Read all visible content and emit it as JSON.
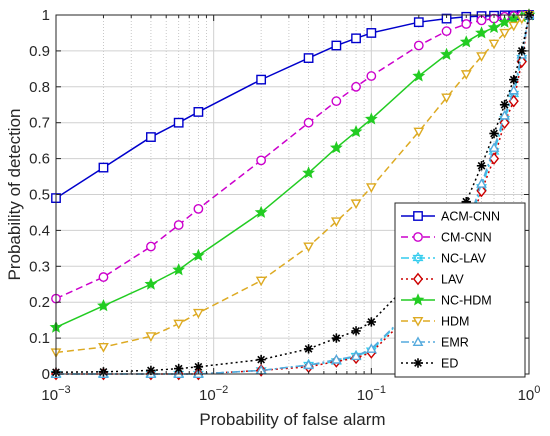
{
  "chart_data": {
    "type": "line",
    "xscale": "log",
    "xlabel": "Probability of false alarm",
    "ylabel": "Probability of detection",
    "xlim": [
      0.001,
      1
    ],
    "ylim": [
      0,
      1
    ],
    "grid": "on",
    "legend_position": "bottom-right",
    "x_ticks": [
      {
        "value": 0.001,
        "base": "10",
        "exp": "−3"
      },
      {
        "value": 0.01,
        "base": "10",
        "exp": "−2"
      },
      {
        "value": 0.1,
        "base": "10",
        "exp": "−1"
      },
      {
        "value": 1,
        "base": "10",
        "exp": "0"
      }
    ],
    "y_ticks": [
      "0",
      "0.1",
      "0.2",
      "0.3",
      "0.4",
      "0.5",
      "0.6",
      "0.7",
      "0.8",
      "0.9",
      "1"
    ],
    "series": [
      {
        "name": "ACM-CNN",
        "color": "#0000cc",
        "dash": "solid",
        "marker": "square",
        "x": [
          0.001,
          0.002,
          0.004,
          0.006,
          0.008,
          0.02,
          0.04,
          0.06,
          0.08,
          0.1,
          0.2,
          0.3,
          0.4,
          0.5,
          0.6,
          0.7,
          0.8,
          0.9,
          1
        ],
        "y": [
          0.49,
          0.575,
          0.66,
          0.7,
          0.73,
          0.82,
          0.88,
          0.915,
          0.935,
          0.95,
          0.98,
          0.99,
          0.995,
          0.997,
          0.998,
          0.999,
          0.999,
          1.0,
          1.0
        ]
      },
      {
        "name": "CM-CNN",
        "color": "#cc00cc",
        "dash": "dashed",
        "marker": "circle",
        "x": [
          0.001,
          0.002,
          0.004,
          0.006,
          0.008,
          0.02,
          0.04,
          0.06,
          0.08,
          0.1,
          0.2,
          0.3,
          0.4,
          0.5,
          0.6,
          0.7,
          0.8,
          0.9,
          1
        ],
        "y": [
          0.21,
          0.27,
          0.355,
          0.415,
          0.46,
          0.595,
          0.7,
          0.76,
          0.8,
          0.83,
          0.915,
          0.955,
          0.975,
          0.985,
          0.99,
          0.995,
          0.997,
          0.999,
          1.0
        ]
      },
      {
        "name": "NC-LAV",
        "color": "#33ccee",
        "dash": "dashdot",
        "marker": "hexagram",
        "x": [
          0.001,
          0.002,
          0.004,
          0.006,
          0.008,
          0.02,
          0.04,
          0.06,
          0.08,
          0.1,
          0.2,
          0.3,
          0.4,
          0.5,
          0.6,
          0.7,
          0.8,
          0.9,
          1
        ],
        "y": [
          0.0,
          0.0,
          0.0,
          0.0,
          0.0,
          0.01,
          0.025,
          0.035,
          0.05,
          0.065,
          0.2,
          0.3,
          0.4,
          0.52,
          0.62,
          0.71,
          0.78,
          0.88,
          1.0
        ]
      },
      {
        "name": "LAV",
        "color": "#cc0000",
        "dash": "dotted",
        "marker": "diamond",
        "x": [
          0.001,
          0.002,
          0.004,
          0.006,
          0.008,
          0.02,
          0.04,
          0.06,
          0.08,
          0.1,
          0.2,
          0.3,
          0.4,
          0.5,
          0.6,
          0.7,
          0.8,
          0.9,
          1
        ],
        "y": [
          0.0,
          0.0,
          0.0,
          0.0,
          0.0,
          0.01,
          0.02,
          0.035,
          0.045,
          0.06,
          0.19,
          0.29,
          0.39,
          0.51,
          0.6,
          0.7,
          0.76,
          0.87,
          1.0
        ]
      },
      {
        "name": "NC-HDM",
        "color": "#22cc22",
        "dash": "solid",
        "marker": "star",
        "x": [
          0.001,
          0.002,
          0.004,
          0.006,
          0.008,
          0.02,
          0.04,
          0.06,
          0.08,
          0.1,
          0.2,
          0.3,
          0.4,
          0.5,
          0.6,
          0.7,
          0.8,
          0.9,
          1
        ],
        "y": [
          0.13,
          0.19,
          0.25,
          0.29,
          0.33,
          0.45,
          0.56,
          0.63,
          0.675,
          0.71,
          0.83,
          0.89,
          0.925,
          0.95,
          0.965,
          0.98,
          0.99,
          0.995,
          1.0
        ]
      },
      {
        "name": "HDM",
        "color": "#ddaa22",
        "dash": "dashed",
        "marker": "triangle-down",
        "x": [
          0.001,
          0.002,
          0.004,
          0.006,
          0.008,
          0.02,
          0.04,
          0.06,
          0.08,
          0.1,
          0.2,
          0.3,
          0.4,
          0.5,
          0.6,
          0.7,
          0.8,
          0.9,
          1
        ],
        "y": [
          0.06,
          0.075,
          0.105,
          0.14,
          0.17,
          0.26,
          0.355,
          0.425,
          0.475,
          0.52,
          0.675,
          0.77,
          0.835,
          0.885,
          0.92,
          0.95,
          0.97,
          0.99,
          1.0
        ]
      },
      {
        "name": "EMR",
        "color": "#55aadd",
        "dash": "dashdot",
        "marker": "triangle-up",
        "x": [
          0.001,
          0.002,
          0.004,
          0.006,
          0.008,
          0.02,
          0.04,
          0.06,
          0.08,
          0.1,
          0.2,
          0.3,
          0.4,
          0.5,
          0.6,
          0.7,
          0.8,
          0.9,
          1
        ],
        "y": [
          0.0,
          0.0,
          0.0,
          0.0,
          0.0,
          0.01,
          0.025,
          0.04,
          0.05,
          0.07,
          0.2,
          0.3,
          0.41,
          0.53,
          0.63,
          0.72,
          0.79,
          0.89,
          1.0
        ]
      },
      {
        "name": "ED",
        "color": "#000000",
        "dash": "dotted",
        "marker": "asterisk",
        "x": [
          0.001,
          0.002,
          0.004,
          0.006,
          0.008,
          0.02,
          0.04,
          0.06,
          0.08,
          0.1,
          0.2,
          0.3,
          0.4,
          0.5,
          0.6,
          0.7,
          0.8,
          0.9,
          1
        ],
        "y": [
          0.005,
          0.006,
          0.01,
          0.015,
          0.02,
          0.04,
          0.07,
          0.1,
          0.12,
          0.145,
          0.28,
          0.38,
          0.48,
          0.58,
          0.67,
          0.75,
          0.82,
          0.9,
          1.0
        ]
      }
    ]
  }
}
